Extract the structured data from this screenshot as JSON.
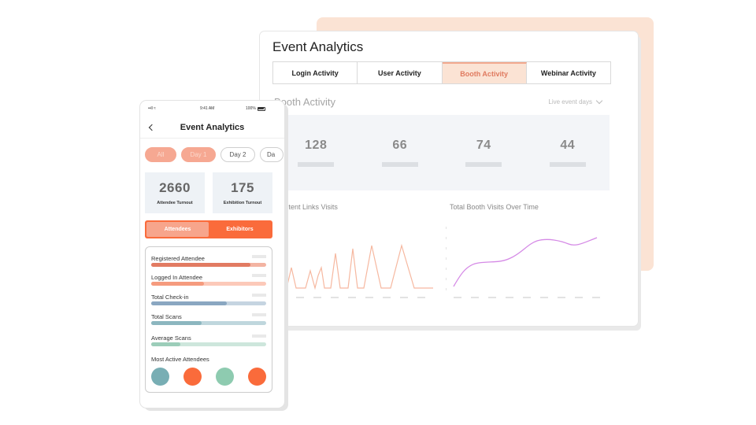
{
  "colors": {
    "accent": "#fa6b3b",
    "accent_light": "#f7a58c",
    "peach": "#fbe3d4",
    "line_peach": "#f6b8a0",
    "line_purple": "#d58ae6"
  },
  "dashboard": {
    "title": "Event Analytics",
    "tabs": [
      {
        "label": "Login Activity"
      },
      {
        "label": "User Activity"
      },
      {
        "label": "Booth Activity"
      },
      {
        "label": "Webinar Activity"
      }
    ],
    "active_tab": "Booth Activity",
    "section_title": "Booth Activity",
    "dropdown": {
      "value": "Live event days",
      "icon": "chevron-down-icon"
    },
    "stats": [
      {
        "value": "128"
      },
      {
        "value": "66"
      },
      {
        "value": "74"
      },
      {
        "value": "44"
      }
    ],
    "charts": [
      {
        "title": "Content Links Visits"
      },
      {
        "title": "Total Booth Visits Over Time"
      }
    ]
  },
  "phone": {
    "status": {
      "left": "••ll ≈",
      "time": "9:41 AM",
      "battery": "100%"
    },
    "title": "Event Analytics",
    "chips": [
      {
        "label": "All",
        "filled": true
      },
      {
        "label": "Day 1",
        "filled": true
      },
      {
        "label": "Day 2",
        "filled": false
      },
      {
        "label": "Da",
        "filled": false
      }
    ],
    "kpis": [
      {
        "value": "2660",
        "label": "Attendee Turnout"
      },
      {
        "value": "175",
        "label": "Exhibition Turnout"
      }
    ],
    "segments": [
      {
        "label": "Attendees",
        "active": true
      },
      {
        "label": "Exhibitors",
        "active": false
      }
    ],
    "metrics": [
      {
        "label": "Registered Attendee",
        "progress": 0.86,
        "fill": "#e27b62",
        "track": "#f3b4a2"
      },
      {
        "label": "Logged In Attendee",
        "progress": 0.46,
        "fill": "#f59b7e",
        "track": "#fcc9b9"
      },
      {
        "label": "Total Check-in",
        "progress": 0.66,
        "fill": "#8aa7c1",
        "track": "#c5d4e1"
      },
      {
        "label": "Total Scans",
        "progress": 0.44,
        "fill": "#8cb6bf",
        "track": "#bfd7dd"
      },
      {
        "label": "Average Scans",
        "progress": 0.25,
        "fill": "#9ccdb9",
        "track": "#cde6dc"
      }
    ],
    "most_active_label": "Most Active Attendees",
    "avatars": [
      "#78aeb4",
      "#fa6b3b",
      "#8ecbb0",
      "#fa6b3b"
    ]
  }
}
